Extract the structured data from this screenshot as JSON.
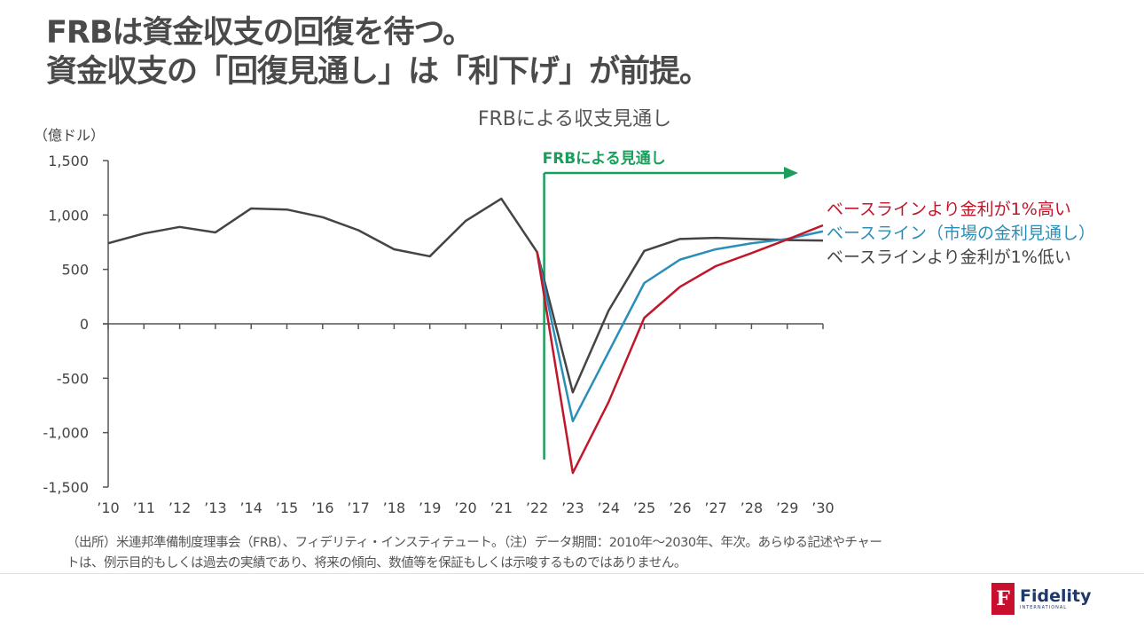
{
  "header": {
    "title_line1": "FRBは資金収支の回復を待つ。",
    "title_line2": "資金収支の「回復見通し」は「利下げ」が前提。"
  },
  "chart_data": {
    "type": "line",
    "title": "FRBによる収支見通し",
    "ylabel": "（億ドル）",
    "ylim": [
      -1500,
      1500
    ],
    "yticks": [
      1500,
      1000,
      500,
      0,
      -500,
      -1000,
      -1500
    ],
    "ytick_labels": [
      "1,500",
      "1,000",
      "500",
      "0",
      "-500",
      "-1,000",
      "-1,500"
    ],
    "categories": [
      "’10",
      "’11",
      "’12",
      "’13",
      "’14",
      "’15",
      "’16",
      "’17",
      "’18",
      "’19",
      "’20",
      "’21",
      "’22",
      "’23",
      "’24",
      "’25",
      "’26",
      "’27",
      "’28",
      "’29",
      "’30"
    ],
    "grid": false,
    "legend_placement": "right",
    "annotation": {
      "label": "FRBによる見通し",
      "from_category": "’22",
      "color": "#1a9e5c"
    },
    "series": [
      {
        "name": "ベースラインより金利が1%高い",
        "color": "#c0172b",
        "values": [
          null,
          null,
          null,
          null,
          null,
          null,
          null,
          null,
          null,
          null,
          null,
          null,
          660,
          -1370,
          -720,
          55,
          340,
          530,
          650,
          775,
          905
        ]
      },
      {
        "name": "ベースライン（市場の金利見通し）",
        "color": "#2a8fb8",
        "values": [
          null,
          null,
          null,
          null,
          null,
          null,
          null,
          null,
          null,
          null,
          null,
          null,
          660,
          -895,
          -260,
          375,
          590,
          685,
          740,
          780,
          850
        ]
      },
      {
        "name": "ベースラインより金利が1%低い",
        "color": "#444444",
        "values": [
          740,
          830,
          890,
          840,
          1060,
          1050,
          980,
          860,
          685,
          620,
          945,
          1150,
          660,
          -630,
          120,
          670,
          780,
          790,
          780,
          770,
          765
        ]
      }
    ]
  },
  "footnote": {
    "line1": "（出所）米連邦準備制度理事会（FRB）、フィデリティ・インスティテュート。（注）データ期間：2010年～2030年、年次。あらゆる記述やチャー",
    "line2": "トは、例示目的もしくは過去の実績であり、将来の傾向、数値等を保証もしくは示唆するものではありません。"
  },
  "logo": {
    "name": "Fidelity",
    "sub": "INTERNATIONAL",
    "color": "#c8102e"
  }
}
